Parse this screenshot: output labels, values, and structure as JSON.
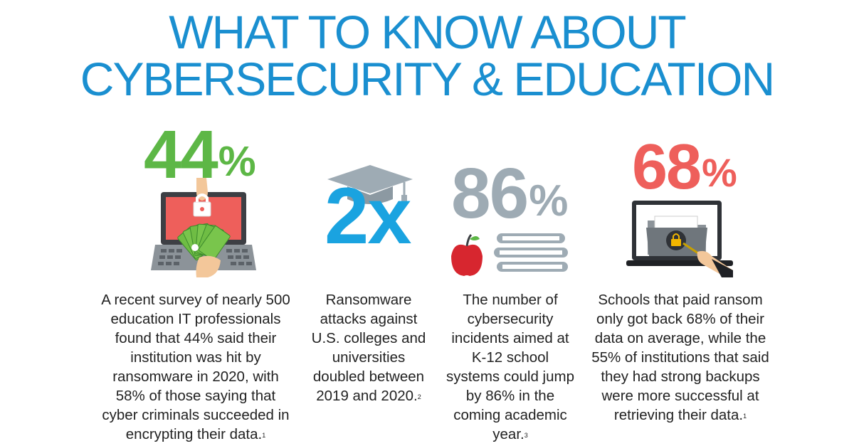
{
  "title": {
    "line1": "WHAT TO KNOW ABOUT",
    "line2": "CYBERSECURITY & EDUCATION"
  },
  "stats": [
    {
      "value": "44",
      "suffix": "%",
      "color": "#5db746",
      "icon": "laptop-lock-cash-icon",
      "description": "A recent survey of nearly 500 education IT professionals found that 44% said their institution was hit by ransomware in 2020, with 58% of those saying that cyber criminals succeeded in encrypting their data.",
      "footnote": "1"
    },
    {
      "value": "2x",
      "suffix": "",
      "color": "#1aa3e0",
      "icon": "graduation-cap-icon",
      "description": "Ransomware attacks against U.S. colleges and universities doubled between 2019 and 2020.",
      "footnote": "2"
    },
    {
      "value": "86",
      "suffix": "%",
      "color": "#9eabb4",
      "icon": "apple-and-books-icon",
      "description": "The number of cybersecurity incidents aimed at K-12 school systems could jump by 86% in the coming academic year.",
      "footnote": "3"
    },
    {
      "value": "68",
      "suffix": "%",
      "color": "#ee5f5b",
      "icon": "laptop-locked-folder-icon",
      "description": "Schools that paid ransom only got back 68% of their data on average, while the 55% of institutions that said they had strong backups were more successful at retrieving their data.",
      "footnote": "1"
    }
  ]
}
